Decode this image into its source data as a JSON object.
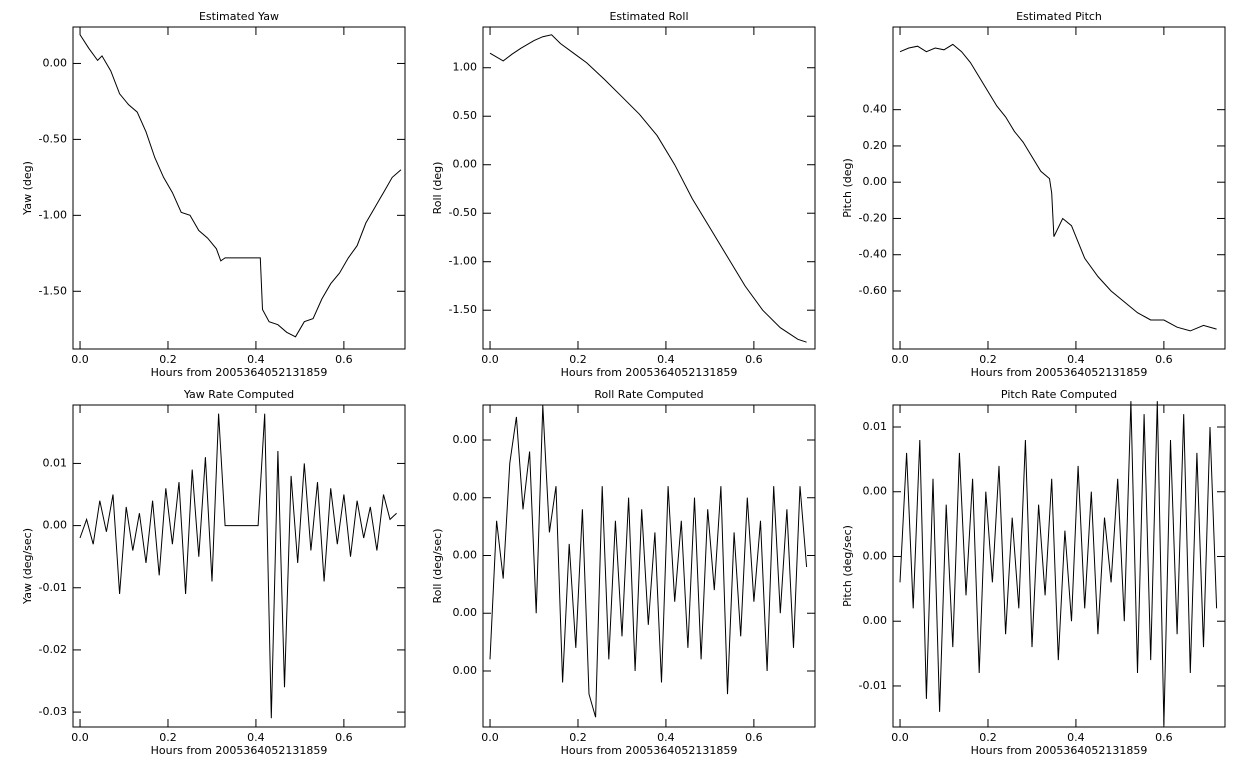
{
  "chart_data": [
    {
      "type": "line",
      "title": "Estimated Yaw",
      "xlabel": "Hours from 2005364052131859",
      "ylabel": "Yaw (deg)",
      "color": "#000000",
      "x": [
        0,
        0.02,
        0.04,
        0.05,
        0.07,
        0.09,
        0.11,
        0.13,
        0.15,
        0.17,
        0.19,
        0.21,
        0.23,
        0.25,
        0.27,
        0.29,
        0.31,
        0.32,
        0.33,
        0.41,
        0.415,
        0.43,
        0.45,
        0.47,
        0.49,
        0.51,
        0.53,
        0.55,
        0.57,
        0.59,
        0.61,
        0.63,
        0.65,
        0.67,
        0.69,
        0.71,
        0.73
      ],
      "values": [
        0.19,
        0.1,
        0.02,
        0.05,
        -0.05,
        -0.2,
        -0.27,
        -0.32,
        -0.45,
        -0.62,
        -0.75,
        -0.85,
        -0.98,
        -1.0,
        -1.1,
        -1.15,
        -1.22,
        -1.3,
        -1.28,
        -1.28,
        -1.62,
        -1.7,
        -1.72,
        -1.77,
        -1.8,
        -1.7,
        -1.68,
        -1.55,
        -1.45,
        -1.38,
        -1.28,
        -1.2,
        -1.05,
        -0.95,
        -0.85,
        -0.75,
        -0.7
      ],
      "xlim": [
        -0.016,
        0.739
      ],
      "ylim": [
        -1.88,
        0.24
      ],
      "xticks": [
        {
          "value": 0,
          "label": "0.0"
        },
        0.2,
        0.4,
        0.6
      ],
      "yticks": [
        {
          "value": 0,
          "label": "0.00"
        },
        {
          "value": -0.5,
          "label": "-0.50"
        },
        {
          "value": -1,
          "label": "-1.00"
        },
        {
          "value": -1.5,
          "label": "-1.50"
        }
      ]
    },
    {
      "type": "line",
      "title": "Estimated Roll",
      "xlabel": "Hours from 2005364052131859",
      "ylabel": "Roll (deg)",
      "color": "#000000",
      "x": [
        0,
        0.03,
        0.05,
        0.07,
        0.1,
        0.12,
        0.14,
        0.16,
        0.19,
        0.22,
        0.26,
        0.3,
        0.34,
        0.38,
        0.42,
        0.46,
        0.5,
        0.54,
        0.58,
        0.62,
        0.66,
        0.7,
        0.72
      ],
      "values": [
        1.15,
        1.07,
        1.14,
        1.2,
        1.28,
        1.32,
        1.34,
        1.25,
        1.15,
        1.05,
        0.88,
        0.7,
        0.52,
        0.3,
        0.0,
        -0.35,
        -0.65,
        -0.95,
        -1.25,
        -1.5,
        -1.68,
        -1.8,
        -1.83
      ],
      "xlim": [
        -0.016,
        0.739
      ],
      "ylim": [
        -1.9,
        1.42
      ],
      "xticks": [
        {
          "value": 0,
          "label": "0.0"
        },
        0.2,
        0.4,
        0.6
      ],
      "yticks": [
        {
          "value": 1,
          "label": "1.00"
        },
        {
          "value": 0.5,
          "label": "0.50"
        },
        {
          "value": 0,
          "label": "0.00"
        },
        {
          "value": -0.5,
          "label": "-0.50"
        },
        {
          "value": -1,
          "label": "-1.00"
        },
        {
          "value": -1.5,
          "label": "-1.50"
        }
      ]
    },
    {
      "type": "line",
      "title": "Estimated Pitch",
      "xlabel": "Hours from 2005364052131859",
      "ylabel": "Pitch (deg)",
      "color": "#000000",
      "x": [
        0,
        0.02,
        0.04,
        0.06,
        0.08,
        0.1,
        0.12,
        0.14,
        0.16,
        0.18,
        0.2,
        0.22,
        0.24,
        0.26,
        0.28,
        0.3,
        0.32,
        0.34,
        0.345,
        0.35,
        0.37,
        0.39,
        0.42,
        0.45,
        0.48,
        0.51,
        0.54,
        0.57,
        0.6,
        0.63,
        0.66,
        0.69,
        0.72
      ],
      "values": [
        0.72,
        0.74,
        0.75,
        0.72,
        0.74,
        0.73,
        0.76,
        0.72,
        0.66,
        0.58,
        0.5,
        0.42,
        0.36,
        0.28,
        0.22,
        0.14,
        0.06,
        0.02,
        -0.06,
        -0.3,
        -0.2,
        -0.24,
        -0.42,
        -0.52,
        -0.6,
        -0.66,
        -0.72,
        -0.76,
        -0.76,
        -0.8,
        -0.82,
        -0.79,
        -0.81
      ],
      "xlim": [
        -0.016,
        0.739
      ],
      "ylim": [
        -0.92,
        0.856
      ],
      "xticks": [
        {
          "value": 0,
          "label": "0.0"
        },
        0.2,
        0.4,
        0.6
      ],
      "yticks": [
        {
          "value": 0.4,
          "label": "0.40"
        },
        {
          "value": 0.2,
          "label": "0.20"
        },
        {
          "value": 0,
          "label": "0.00"
        },
        {
          "value": -0.2,
          "label": "-0.20"
        },
        {
          "value": -0.4,
          "label": "-0.40"
        },
        {
          "value": -0.6,
          "label": "-0.60"
        }
      ]
    },
    {
      "type": "line",
      "title": "Yaw Rate Computed",
      "xlabel": "Hours from 2005364052131859",
      "ylabel": "Yaw (deg/sec)",
      "color": "#000000",
      "x": [
        0,
        0.015,
        0.03,
        0.045,
        0.06,
        0.075,
        0.09,
        0.105,
        0.12,
        0.135,
        0.15,
        0.165,
        0.18,
        0.195,
        0.21,
        0.225,
        0.24,
        0.255,
        0.27,
        0.285,
        0.3,
        0.315,
        0.33,
        0.345,
        0.36,
        0.375,
        0.39,
        0.405,
        0.42,
        0.435,
        0.45,
        0.465,
        0.48,
        0.495,
        0.51,
        0.525,
        0.54,
        0.555,
        0.57,
        0.585,
        0.6,
        0.615,
        0.63,
        0.645,
        0.66,
        0.675,
        0.69,
        0.705,
        0.72
      ],
      "values": [
        -0.002,
        0.001,
        -0.003,
        0.004,
        -0.001,
        0.005,
        -0.011,
        0.003,
        -0.004,
        0.002,
        -0.006,
        0.004,
        -0.008,
        0.006,
        -0.003,
        0.007,
        -0.011,
        0.009,
        -0.005,
        0.011,
        -0.009,
        0.018,
        0,
        0,
        0,
        0,
        0,
        0,
        0.018,
        -0.031,
        0.012,
        -0.026,
        0.008,
        -0.006,
        0.01,
        -0.004,
        0.007,
        -0.009,
        0.006,
        -0.003,
        0.005,
        -0.005,
        0.004,
        -0.002,
        0.003,
        -0.004,
        0.005,
        0.001,
        0.002
      ],
      "xlim": [
        -0.016,
        0.739
      ],
      "ylim": [
        -0.0324,
        0.0194
      ],
      "xticks": [
        {
          "value": 0,
          "label": "0.0"
        },
        0.2,
        0.4,
        0.6
      ],
      "yticks": [
        0.01,
        {
          "value": 0,
          "label": "0.00"
        },
        -0.01,
        -0.02,
        -0.03
      ]
    },
    {
      "type": "line",
      "title": "Roll Rate Computed",
      "xlabel": "Hours from 2005364052131859",
      "ylabel": "Roll (deg/sec)",
      "color": "#000000",
      "x": [
        0,
        0.015,
        0.03,
        0.045,
        0.06,
        0.075,
        0.09,
        0.105,
        0.12,
        0.135,
        0.15,
        0.165,
        0.18,
        0.195,
        0.21,
        0.225,
        0.24,
        0.255,
        0.27,
        0.285,
        0.3,
        0.315,
        0.33,
        0.345,
        0.36,
        0.375,
        0.39,
        0.405,
        0.42,
        0.435,
        0.45,
        0.465,
        0.48,
        0.495,
        0.51,
        0.525,
        0.54,
        0.555,
        0.57,
        0.585,
        0.6,
        0.615,
        0.63,
        0.645,
        0.66,
        0.675,
        0.69,
        0.705,
        0.72
      ],
      "values": [
        -0.009,
        0.003,
        -0.002,
        0.008,
        0.012,
        0.004,
        0.009,
        -0.005,
        0.013,
        0.002,
        0.006,
        -0.011,
        0.001,
        -0.008,
        0.004,
        -0.012,
        -0.014,
        0.006,
        -0.009,
        0.003,
        -0.007,
        0.005,
        -0.01,
        0.004,
        -0.006,
        0.002,
        -0.011,
        0.006,
        -0.004,
        0.003,
        -0.008,
        0.005,
        -0.009,
        0.004,
        -0.003,
        0.006,
        -0.012,
        0.002,
        -0.007,
        0.005,
        -0.004,
        0.003,
        -0.01,
        0.006,
        -0.005,
        0.004,
        -0.008,
        0.006,
        -0.001
      ],
      "xlim": [
        -0.016,
        0.739
      ],
      "ylim": [
        -0.01485,
        0.01303
      ],
      "xticks": [
        {
          "value": 0,
          "label": "0.0"
        },
        0.2,
        0.4,
        0.6
      ],
      "yticks": [
        {
          "value": 0.01,
          "label": "0.00"
        },
        {
          "value": 0.005,
          "label": "0.00"
        },
        {
          "value": 0,
          "label": "0.00"
        },
        {
          "value": -0.005,
          "label": "0.00"
        },
        {
          "value": -0.01,
          "label": "0.00"
        }
      ]
    },
    {
      "type": "line",
      "title": "Pitch Rate Computed",
      "xlabel": "Hours from 2005364052131859",
      "ylabel": "Pitch (deg/sec)",
      "color": "#000000",
      "x": [
        0,
        0.015,
        0.03,
        0.045,
        0.06,
        0.075,
        0.09,
        0.105,
        0.12,
        0.135,
        0.15,
        0.165,
        0.18,
        0.195,
        0.21,
        0.225,
        0.24,
        0.255,
        0.27,
        0.285,
        0.3,
        0.315,
        0.33,
        0.345,
        0.36,
        0.375,
        0.39,
        0.405,
        0.42,
        0.435,
        0.45,
        0.465,
        0.48,
        0.495,
        0.51,
        0.525,
        0.54,
        0.555,
        0.57,
        0.585,
        0.6,
        0.615,
        0.63,
        0.645,
        0.66,
        0.675,
        0.69,
        0.705,
        0.72
      ],
      "values": [
        -0.002,
        0.008,
        -0.004,
        0.009,
        -0.011,
        0.006,
        -0.012,
        0.004,
        -0.007,
        0.008,
        -0.003,
        0.006,
        -0.009,
        0.005,
        -0.002,
        0.007,
        -0.006,
        0.003,
        -0.004,
        0.009,
        -0.007,
        0.004,
        -0.003,
        0.006,
        -0.008,
        0.002,
        -0.005,
        0.007,
        -0.004,
        0.005,
        -0.006,
        0.003,
        -0.002,
        0.006,
        -0.005,
        0.012,
        -0.009,
        0.011,
        -0.008,
        0.012,
        -0.013,
        0.009,
        -0.006,
        0.011,
        -0.009,
        0.008,
        -0.007,
        0.01,
        -0.004
      ],
      "xlim": [
        -0.016,
        0.739
      ],
      "ylim": [
        -0.01317,
        0.0117
      ],
      "xticks": [
        {
          "value": 0,
          "label": "0.0"
        },
        0.2,
        0.4,
        0.6
      ],
      "yticks": [
        0.01,
        {
          "value": 0.005,
          "label": "0.00"
        },
        {
          "value": 0,
          "label": "0.00"
        },
        {
          "value": -0.005,
          "label": "0.00"
        },
        -0.01
      ]
    }
  ]
}
